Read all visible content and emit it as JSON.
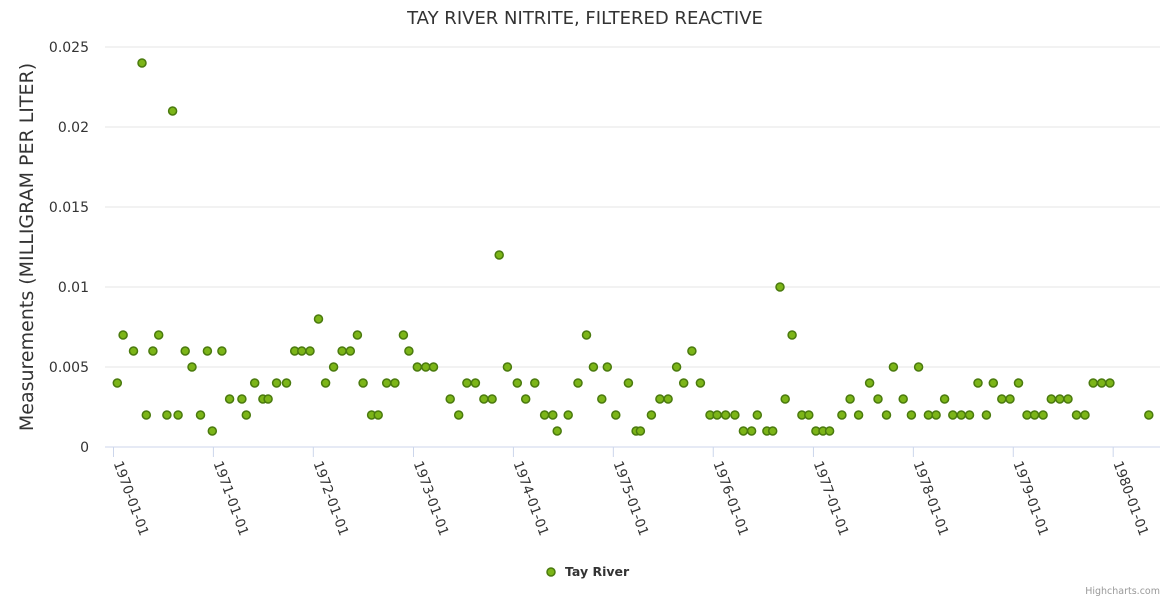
{
  "chart_data": {
    "type": "scatter",
    "title": "TAY RIVER NITRITE, FILTERED REACTIVE",
    "ylabel": "Measurements (MILLIGRAM PER LITER)",
    "xlabel": "",
    "ylim": [
      0,
      0.025
    ],
    "xlim": [
      "1969-12-01",
      "1980-06-20"
    ],
    "y_ticks": [
      "0",
      "0.005",
      "0.01",
      "0.015",
      "0.02",
      "0.025"
    ],
    "x_ticks": [
      "1970-01-01",
      "1971-01-01",
      "1972-01-01",
      "1973-01-01",
      "1974-01-01",
      "1975-01-01",
      "1976-01-01",
      "1977-01-01",
      "1978-01-01",
      "1979-01-01",
      "1980-01-01"
    ],
    "grid": true,
    "legend_position": "bottom-center",
    "series": [
      {
        "name": "Tay River",
        "color": "#7cb518",
        "points": [
          [
            "1970-01-15",
            0.004
          ],
          [
            "1970-02-05",
            0.007
          ],
          [
            "1970-03-15",
            0.006
          ],
          [
            "1970-04-15",
            0.024
          ],
          [
            "1970-05-01",
            0.002
          ],
          [
            "1970-05-25",
            0.006
          ],
          [
            "1970-06-15",
            0.007
          ],
          [
            "1970-07-15",
            0.002
          ],
          [
            "1970-08-05",
            0.021
          ],
          [
            "1970-08-25",
            0.002
          ],
          [
            "1970-09-20",
            0.006
          ],
          [
            "1970-10-15",
            0.005
          ],
          [
            "1970-11-15",
            0.002
          ],
          [
            "1970-12-10",
            0.006
          ],
          [
            "1970-12-28",
            0.001
          ],
          [
            "1971-02-01",
            0.006
          ],
          [
            "1971-03-01",
            0.003
          ],
          [
            "1971-04-15",
            0.003
          ],
          [
            "1971-05-01",
            0.002
          ],
          [
            "1971-06-01",
            0.004
          ],
          [
            "1971-07-01",
            0.003
          ],
          [
            "1971-07-20",
            0.003
          ],
          [
            "1971-08-20",
            0.004
          ],
          [
            "1971-09-25",
            0.004
          ],
          [
            "1971-10-25",
            0.006
          ],
          [
            "1971-11-20",
            0.006
          ],
          [
            "1971-12-20",
            0.006
          ],
          [
            "1972-01-20",
            0.008
          ],
          [
            "1972-02-15",
            0.004
          ],
          [
            "1972-03-15",
            0.005
          ],
          [
            "1972-04-15",
            0.006
          ],
          [
            "1972-05-15",
            0.006
          ],
          [
            "1972-06-10",
            0.007
          ],
          [
            "1972-07-01",
            0.004
          ],
          [
            "1972-08-01",
            0.002
          ],
          [
            "1972-08-25",
            0.002
          ],
          [
            "1972-09-25",
            0.004
          ],
          [
            "1972-10-25",
            0.004
          ],
          [
            "1972-11-25",
            0.007
          ],
          [
            "1972-12-15",
            0.006
          ],
          [
            "1973-01-15",
            0.005
          ],
          [
            "1973-02-15",
            0.005
          ],
          [
            "1973-03-15",
            0.005
          ],
          [
            "1973-05-15",
            0.003
          ],
          [
            "1973-06-15",
            0.002
          ],
          [
            "1973-07-15",
            0.004
          ],
          [
            "1973-08-15",
            0.004
          ],
          [
            "1973-09-15",
            0.003
          ],
          [
            "1973-10-15",
            0.003
          ],
          [
            "1973-11-10",
            0.012
          ],
          [
            "1973-12-10",
            0.005
          ],
          [
            "1974-01-15",
            0.004
          ],
          [
            "1974-02-15",
            0.003
          ],
          [
            "1974-03-20",
            0.004
          ],
          [
            "1974-04-25",
            0.002
          ],
          [
            "1974-05-25",
            0.002
          ],
          [
            "1974-06-10",
            0.001
          ],
          [
            "1974-07-20",
            0.002
          ],
          [
            "1974-08-25",
            0.004
          ],
          [
            "1974-09-25",
            0.007
          ],
          [
            "1974-10-20",
            0.005
          ],
          [
            "1974-11-20",
            0.003
          ],
          [
            "1974-12-10",
            0.005
          ],
          [
            "1975-01-10",
            0.002
          ],
          [
            "1975-02-25",
            0.004
          ],
          [
            "1975-03-25",
            0.001
          ],
          [
            "1975-04-10",
            0.001
          ],
          [
            "1975-05-20",
            0.002
          ],
          [
            "1975-06-20",
            0.003
          ],
          [
            "1975-07-20",
            0.003
          ],
          [
            "1975-08-20",
            0.005
          ],
          [
            "1975-09-15",
            0.004
          ],
          [
            "1975-10-15",
            0.006
          ],
          [
            "1975-11-15",
            0.004
          ],
          [
            "1975-12-20",
            0.002
          ],
          [
            "1976-01-15",
            0.002
          ],
          [
            "1976-02-15",
            0.002
          ],
          [
            "1976-03-20",
            0.002
          ],
          [
            "1976-04-20",
            0.001
          ],
          [
            "1976-05-20",
            0.001
          ],
          [
            "1976-06-10",
            0.002
          ],
          [
            "1976-07-15",
            0.001
          ],
          [
            "1976-08-05",
            0.001
          ],
          [
            "1976-09-01",
            0.01
          ],
          [
            "1976-09-20",
            0.003
          ],
          [
            "1976-10-15",
            0.007
          ],
          [
            "1976-11-20",
            0.002
          ],
          [
            "1976-12-15",
            0.002
          ],
          [
            "1977-01-10",
            0.001
          ],
          [
            "1977-02-05",
            0.001
          ],
          [
            "1977-03-01",
            0.001
          ],
          [
            "1977-04-15",
            0.002
          ],
          [
            "1977-05-15",
            0.003
          ],
          [
            "1977-06-15",
            0.002
          ],
          [
            "1977-07-25",
            0.004
          ],
          [
            "1977-08-25",
            0.003
          ],
          [
            "1977-09-25",
            0.002
          ],
          [
            "1977-10-20",
            0.005
          ],
          [
            "1977-11-25",
            0.003
          ],
          [
            "1977-12-25",
            0.002
          ],
          [
            "1978-01-20",
            0.005
          ],
          [
            "1978-02-25",
            0.002
          ],
          [
            "1978-03-25",
            0.002
          ],
          [
            "1978-04-25",
            0.003
          ],
          [
            "1978-05-25",
            0.002
          ],
          [
            "1978-06-25",
            0.002
          ],
          [
            "1978-07-25",
            0.002
          ],
          [
            "1978-08-25",
            0.004
          ],
          [
            "1978-09-25",
            0.002
          ],
          [
            "1978-10-20",
            0.004
          ],
          [
            "1978-11-20",
            0.003
          ],
          [
            "1978-12-20",
            0.003
          ],
          [
            "1979-01-20",
            0.004
          ],
          [
            "1979-02-20",
            0.002
          ],
          [
            "1979-03-20",
            0.002
          ],
          [
            "1979-04-20",
            0.002
          ],
          [
            "1979-05-20",
            0.003
          ],
          [
            "1979-06-20",
            0.003
          ],
          [
            "1979-07-20",
            0.003
          ],
          [
            "1979-08-20",
            0.002
          ],
          [
            "1979-09-20",
            0.002
          ],
          [
            "1979-10-20",
            0.004
          ],
          [
            "1979-11-20",
            0.004
          ],
          [
            "1979-12-20",
            0.004
          ],
          [
            "1980-05-10",
            0.002
          ]
        ]
      }
    ]
  },
  "credit": "Highcharts.com"
}
